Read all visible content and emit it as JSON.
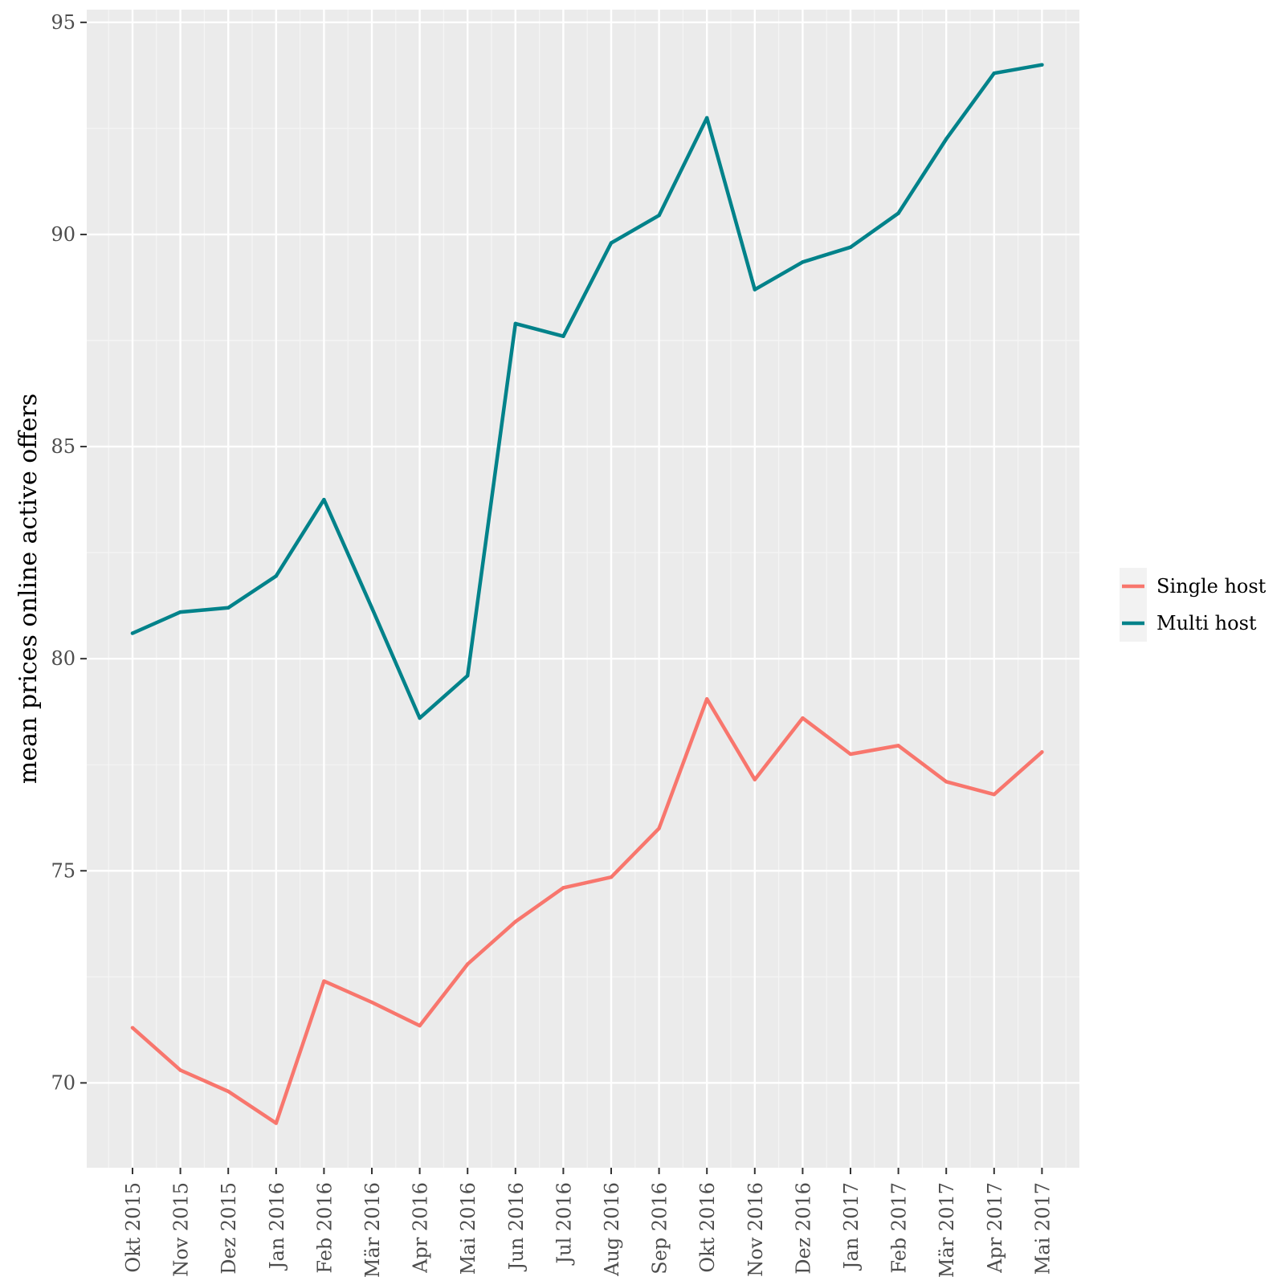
{
  "chart_data": {
    "type": "line",
    "title": "",
    "xlabel": "",
    "ylabel": "mean prices online active offers",
    "categories": [
      "Okt 2015",
      "Nov 2015",
      "Dez 2015",
      "Jan 2016",
      "Feb 2016",
      "Mär 2016",
      "Apr 2016",
      "Mai 2016",
      "Jun 2016",
      "Jul 2016",
      "Aug 2016",
      "Sep 2016",
      "Okt 2016",
      "Nov 2016",
      "Dez 2016",
      "Jan 2017",
      "Feb 2017",
      "Mär 2017",
      "Apr 2017",
      "Mai 2017"
    ],
    "yticks": [
      "70",
      "75",
      "80",
      "85",
      "90",
      "95"
    ],
    "ylim": [
      68.0,
      95.3
    ],
    "grid": true,
    "legend_position": "right",
    "series": [
      {
        "name": "Single host",
        "color": "#F8766D",
        "values": [
          71.3,
          70.3,
          69.8,
          69.05,
          72.4,
          71.9,
          71.35,
          72.8,
          73.8,
          74.6,
          74.85,
          76.0,
          79.05,
          77.15,
          78.6,
          77.75,
          77.95,
          77.1,
          76.8,
          77.8
        ]
      },
      {
        "name": "Multi host",
        "color": "#00828A",
        "values": [
          80.6,
          81.1,
          81.2,
          81.95,
          83.75,
          81.2,
          78.6,
          79.6,
          87.9,
          87.6,
          89.8,
          90.45,
          92.75,
          88.7,
          89.35,
          89.7,
          90.5,
          92.25,
          93.8,
          94.0
        ]
      }
    ]
  }
}
